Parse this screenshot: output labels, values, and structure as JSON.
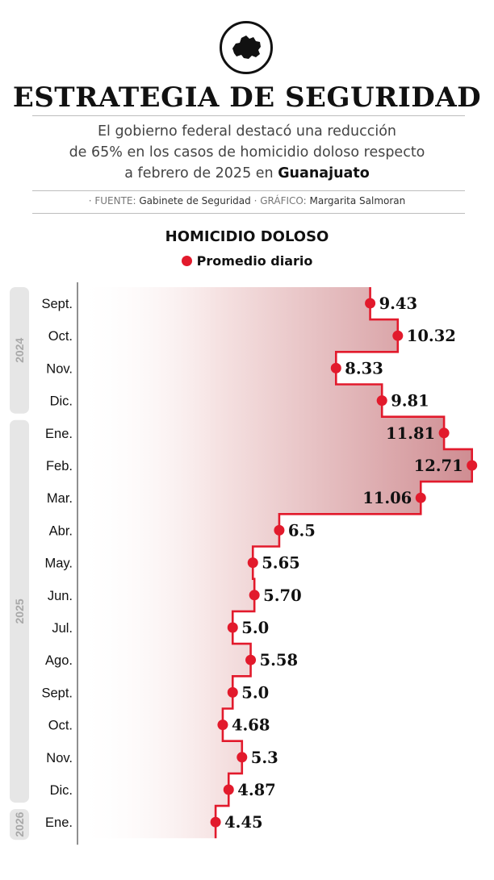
{
  "header": {
    "title": "ESTRATEGIA DE SEGURIDAD",
    "subtitle_line1": "El gobierno federal destacó una reducción",
    "subtitle_line2": "de 65%  en los casos de homicidio doloso respecto",
    "subtitle_line3_pre": "a febrero de 2025 en ",
    "subtitle_line3_bold": "Guanajuato",
    "fuente_label": "· FUENTE:",
    "fuente_value": "Gabinete de Seguridad",
    "grafico_label": "· GRÁFICO:",
    "grafico_value": "Margarita Salmoran",
    "logo_icon": "guanajuato-map-icon"
  },
  "colors": {
    "accent": "#e21a2c",
    "year_band": "#e6e6e6",
    "year_text": "#a8a8a8"
  },
  "chart_data": {
    "type": "line",
    "title": "HOMICIDIO DOLOSO",
    "legend": [
      "Promedio diario"
    ],
    "line_shape": "step",
    "orientation": "horizontal",
    "grid": false,
    "categories": [
      "Sept.",
      "Oct.",
      "Nov.",
      "Dic.",
      "Ene.",
      "Feb.",
      "Mar.",
      "Abr.",
      "May.",
      "Jun.",
      "Jul.",
      "Ago.",
      "Sept.",
      "Oct.",
      "Nov.",
      "Dic.",
      "Ene."
    ],
    "labels": [
      "9.43",
      "10.32",
      "8.33",
      "9.81",
      "11.81",
      "12.71",
      "11.06",
      "6.5",
      "5.65",
      "5.70",
      "5.0",
      "5.58",
      "5.0",
      "4.68",
      "5.3",
      "4.87",
      "4.45"
    ],
    "series": [
      {
        "name": "Promedio diario",
        "values": [
          9.43,
          10.32,
          8.33,
          9.81,
          11.81,
          12.71,
          11.06,
          6.5,
          5.65,
          5.7,
          5.0,
          5.58,
          5.0,
          4.68,
          5.3,
          4.87,
          4.45
        ]
      }
    ],
    "years": [
      {
        "label": "2024",
        "count": 4
      },
      {
        "label": "2025",
        "count": 12
      },
      {
        "label": "2026",
        "count": 1
      }
    ],
    "xlim": [
      0,
      12.71
    ]
  }
}
